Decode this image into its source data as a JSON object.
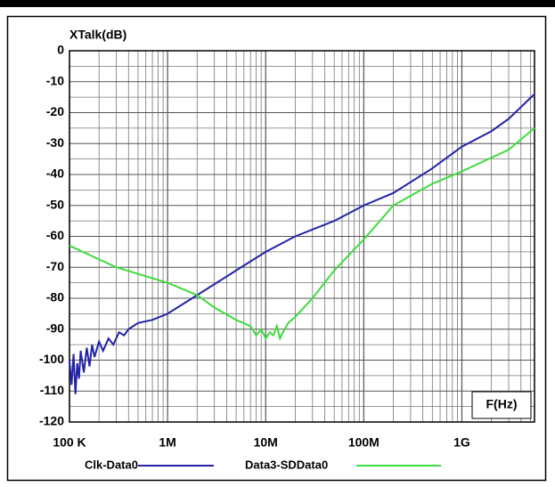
{
  "chart_data": {
    "type": "line",
    "y_label": "XTalk(dB)",
    "x_label": "F(Hz)",
    "x_log": true,
    "grid": true,
    "legend": "bottom",
    "xlim": [
      100000,
      5500000000
    ],
    "ylim": [
      -120,
      0
    ],
    "xticks": [
      {
        "value": 100000,
        "label": "100 K"
      },
      {
        "value": 1000000,
        "label": "1M"
      },
      {
        "value": 10000000,
        "label": "10M"
      },
      {
        "value": 100000000,
        "label": "100M"
      },
      {
        "value": 1000000000,
        "label": "1G"
      }
    ],
    "xgrid_minor": [
      200000,
      300000,
      400000,
      500000,
      600000,
      700000,
      800000,
      900000,
      2000000,
      3000000,
      4000000,
      5000000,
      6000000,
      7000000,
      8000000,
      9000000,
      20000000,
      30000000,
      40000000,
      50000000,
      60000000,
      70000000,
      80000000,
      90000000,
      200000000,
      300000000,
      400000000,
      500000000,
      600000000,
      700000000,
      800000000,
      900000000,
      2000000000,
      3000000000,
      4000000000,
      5000000000
    ],
    "yticks": [
      0,
      -10,
      -20,
      -30,
      -40,
      -50,
      -60,
      -70,
      -80,
      -90,
      -100,
      -110,
      -120
    ],
    "ygrid_minor": [
      -5,
      -15,
      -25,
      -35,
      -45,
      -55,
      -65,
      -75,
      -85,
      -95,
      -105,
      -115
    ],
    "series": [
      {
        "name": "Clk-Data0",
        "color": "#2323a8",
        "x": [
          100000,
          105000,
          110000,
          115000,
          120000,
          125000,
          130000,
          140000,
          150000,
          160000,
          170000,
          180000,
          200000,
          220000,
          250000,
          280000,
          320000,
          360000,
          400000,
          500000,
          700000,
          1000000,
          2000000,
          5000000,
          10000000,
          20000000,
          50000000,
          100000000,
          200000000,
          500000000,
          1000000000,
          2000000000,
          3000000000,
          5500000000
        ],
        "values": [
          -100,
          -108,
          -98,
          -111,
          -101,
          -106,
          -97,
          -104,
          -96,
          -102,
          -95,
          -99,
          -94,
          -97,
          -93,
          -95,
          -91,
          -92,
          -90,
          -88,
          -87,
          -85,
          -79,
          -71,
          -65,
          -60,
          -55,
          -50,
          -46,
          -38,
          -31,
          -26,
          -22,
          -14
        ]
      },
      {
        "name": "Data3-SDData0",
        "color": "#3ddc3d",
        "x": [
          100000,
          300000,
          1000000,
          2000000,
          3000000,
          5000000,
          7000000,
          8000000,
          9000000,
          10000000,
          11000000,
          12000000,
          13000000,
          14000000,
          15000000,
          17000000,
          20000000,
          30000000,
          50000000,
          100000000,
          200000000,
          500000000,
          1000000000,
          3000000000,
          5500000000
        ],
        "values": [
          -63,
          -70,
          -75,
          -79,
          -83,
          -87,
          -89,
          -92,
          -90,
          -93,
          -91,
          -92,
          -89,
          -93,
          -91,
          -88,
          -86,
          -80,
          -71,
          -61,
          -50,
          -43,
          -39,
          -32,
          -25
        ]
      }
    ]
  }
}
